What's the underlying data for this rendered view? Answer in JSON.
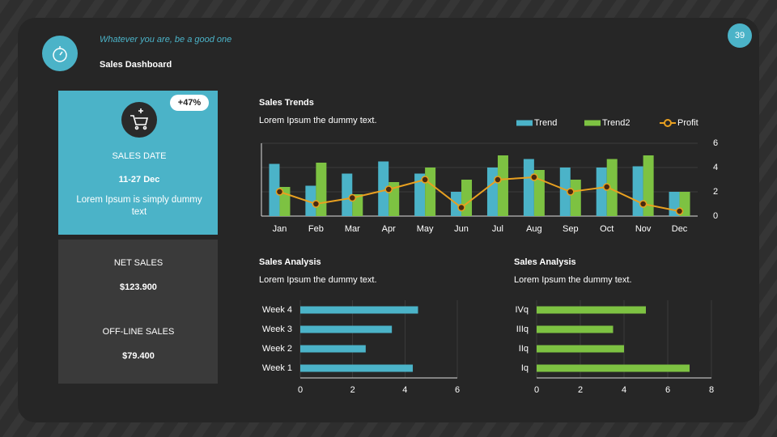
{
  "header": {
    "subtitle": "Whatever you are, be a good one",
    "title": "Sales Dashboard",
    "page": "39"
  },
  "cards": {
    "badge": "+47%",
    "date_label": "SALES DATE",
    "date": "11-27 Dec",
    "date_note": "Lorem Ipsum is simply dummy text",
    "net_label": "NET SALES",
    "net_value": "$123.900",
    "offline_label": "OFF-LINE SALES",
    "offline_value": "$79.400"
  },
  "chart_data": [
    {
      "type": "bar",
      "title": "Sales Trends",
      "subtitle": "Lorem Ipsum the dummy text.",
      "categories": [
        "Jan",
        "Feb",
        "Mar",
        "Apr",
        "May",
        "Jun",
        "Jul",
        "Aug",
        "Sep",
        "Oct",
        "Nov",
        "Dec"
      ],
      "series": [
        {
          "name": "Trend",
          "color": "#4bb3c8",
          "values": [
            4.3,
            2.5,
            3.5,
            4.5,
            3.5,
            2.0,
            4.0,
            4.7,
            4.0,
            4.0,
            4.1,
            2.0
          ]
        },
        {
          "name": "Trend2",
          "color": "#7dc242",
          "values": [
            2.4,
            4.4,
            1.8,
            2.8,
            4.0,
            3.0,
            5.0,
            3.8,
            3.0,
            4.7,
            5.0,
            2.0
          ]
        },
        {
          "name": "Profit",
          "type": "line",
          "color": "#e8a020",
          "values": [
            2.0,
            1.0,
            1.5,
            2.2,
            3.0,
            0.7,
            3.0,
            3.2,
            2.0,
            2.4,
            1.0,
            0.4
          ]
        }
      ],
      "ylim": [
        0,
        6
      ],
      "yticks": [
        0,
        2,
        4,
        6
      ],
      "grid": true,
      "legend": "top-right"
    },
    {
      "type": "barh",
      "title": "Sales Analysis",
      "subtitle": "Lorem Ipsum the dummy text.",
      "categories": [
        "Week 1",
        "Week 2",
        "Week 3",
        "Week 4"
      ],
      "values": [
        4.3,
        2.5,
        3.5,
        4.5
      ],
      "color": "#4bb3c8",
      "xlim": [
        0,
        6
      ],
      "xticks": [
        0,
        2,
        4,
        6
      ],
      "grid": true
    },
    {
      "type": "barh",
      "title": "Sales Analysis",
      "subtitle": "Lorem Ipsum the dummy text.",
      "categories": [
        "Iq",
        "IIq",
        "IIIq",
        "IVq"
      ],
      "values": [
        7,
        4,
        3.5,
        5
      ],
      "color": "#7dc242",
      "xlim": [
        0,
        8
      ],
      "xticks": [
        0,
        2,
        4,
        6,
        8
      ],
      "grid": true
    }
  ]
}
